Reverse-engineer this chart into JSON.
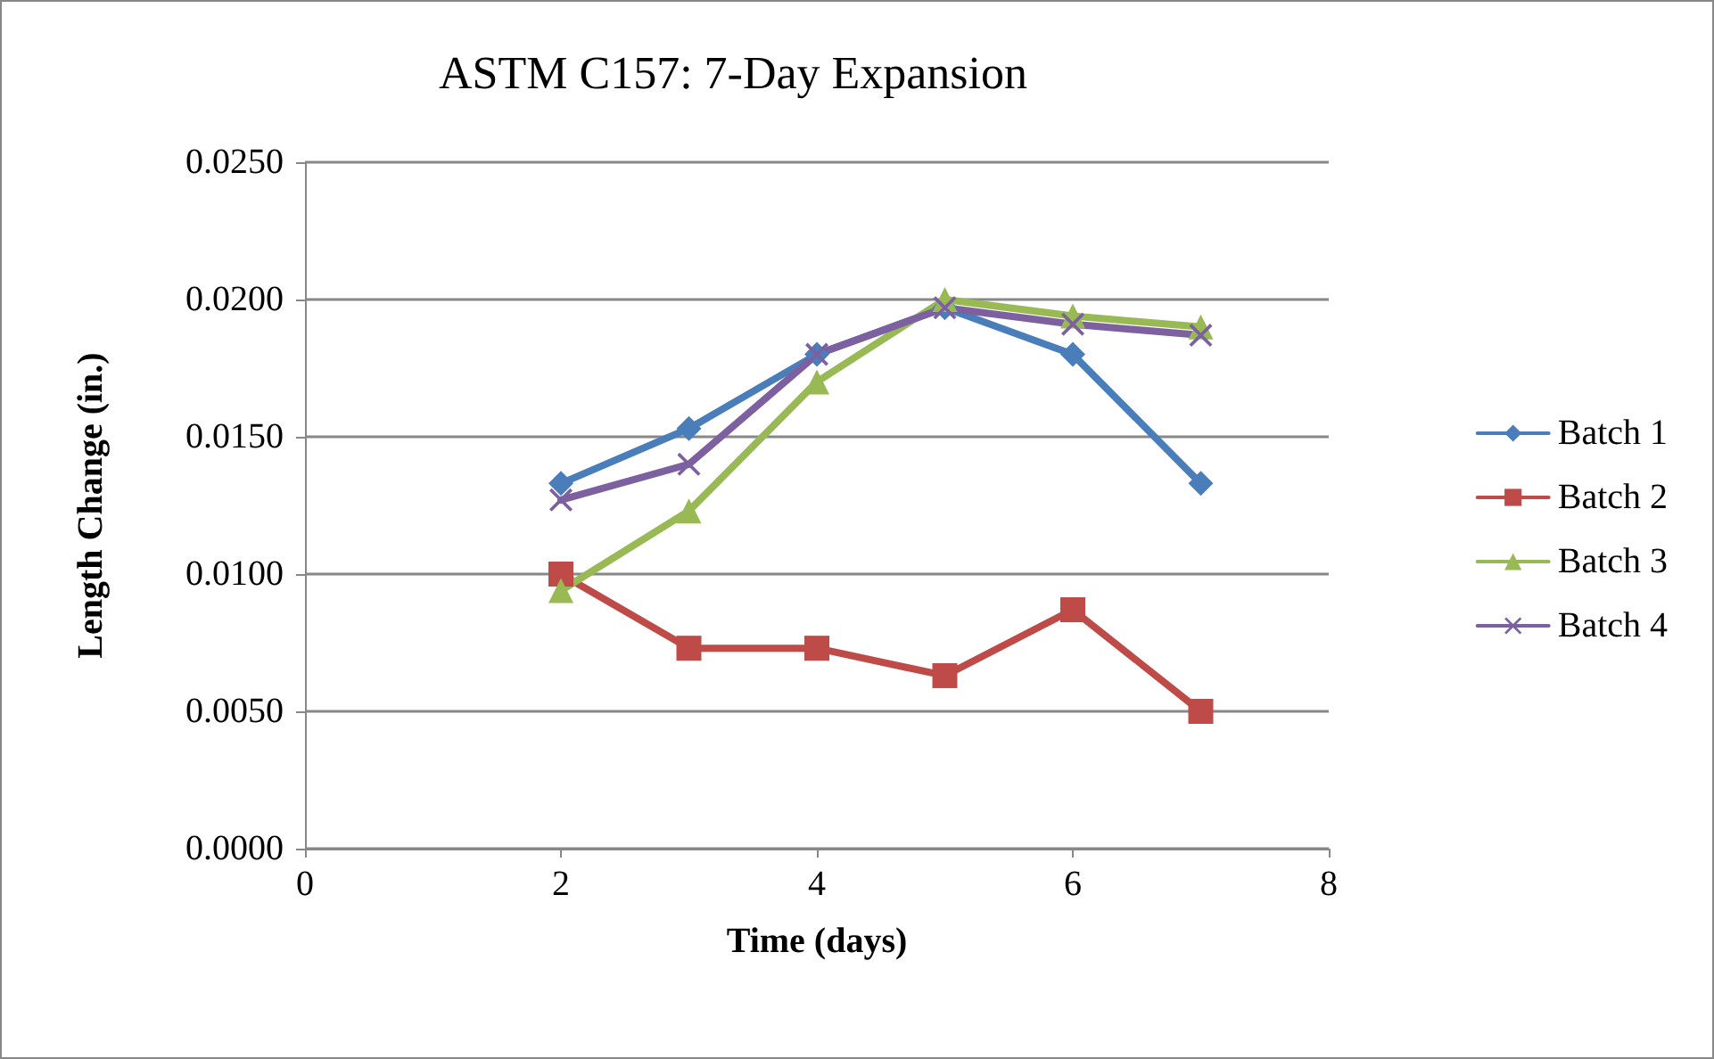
{
  "chart_data": {
    "type": "line",
    "title": "ASTM C157: 7-Day Expansion",
    "xlabel": "Time (days)",
    "ylabel": "Length Change (in.)",
    "x": [
      2,
      3,
      4,
      5,
      6,
      7
    ],
    "series": [
      {
        "name": "Batch 1",
        "color": "#4a7ebb",
        "marker": "diamond",
        "values": [
          0.0133,
          0.0153,
          0.018,
          0.0197,
          0.018,
          0.0133
        ]
      },
      {
        "name": "Batch 2",
        "color": "#be4b48",
        "marker": "square",
        "values": [
          0.01,
          0.0073,
          0.0073,
          0.0063,
          0.0087,
          0.005
        ]
      },
      {
        "name": "Batch 3",
        "color": "#98b954",
        "marker": "triangle",
        "values": [
          0.0094,
          0.0123,
          0.017,
          0.02,
          0.0194,
          0.019
        ]
      },
      {
        "name": "Batch 4",
        "color": "#7d60a0",
        "marker": "cross",
        "values": [
          0.0127,
          0.014,
          0.018,
          0.0197,
          0.0191,
          0.0187
        ]
      }
    ],
    "xlim": [
      0,
      8
    ],
    "xticks": [
      0,
      2,
      4,
      6,
      8
    ],
    "ylim": [
      0,
      0.025
    ],
    "yticks": [
      {
        "value": 0,
        "label": "0.0000"
      },
      {
        "value": 0.005,
        "label": "0.0050"
      },
      {
        "value": 0.01,
        "label": "0.0100"
      },
      {
        "value": 0.015,
        "label": "0.0150"
      },
      {
        "value": 0.02,
        "label": "0.0200"
      },
      {
        "value": 0.025,
        "label": "0.0250"
      }
    ],
    "grid": "y",
    "legend": "right",
    "line_style": "solid"
  }
}
